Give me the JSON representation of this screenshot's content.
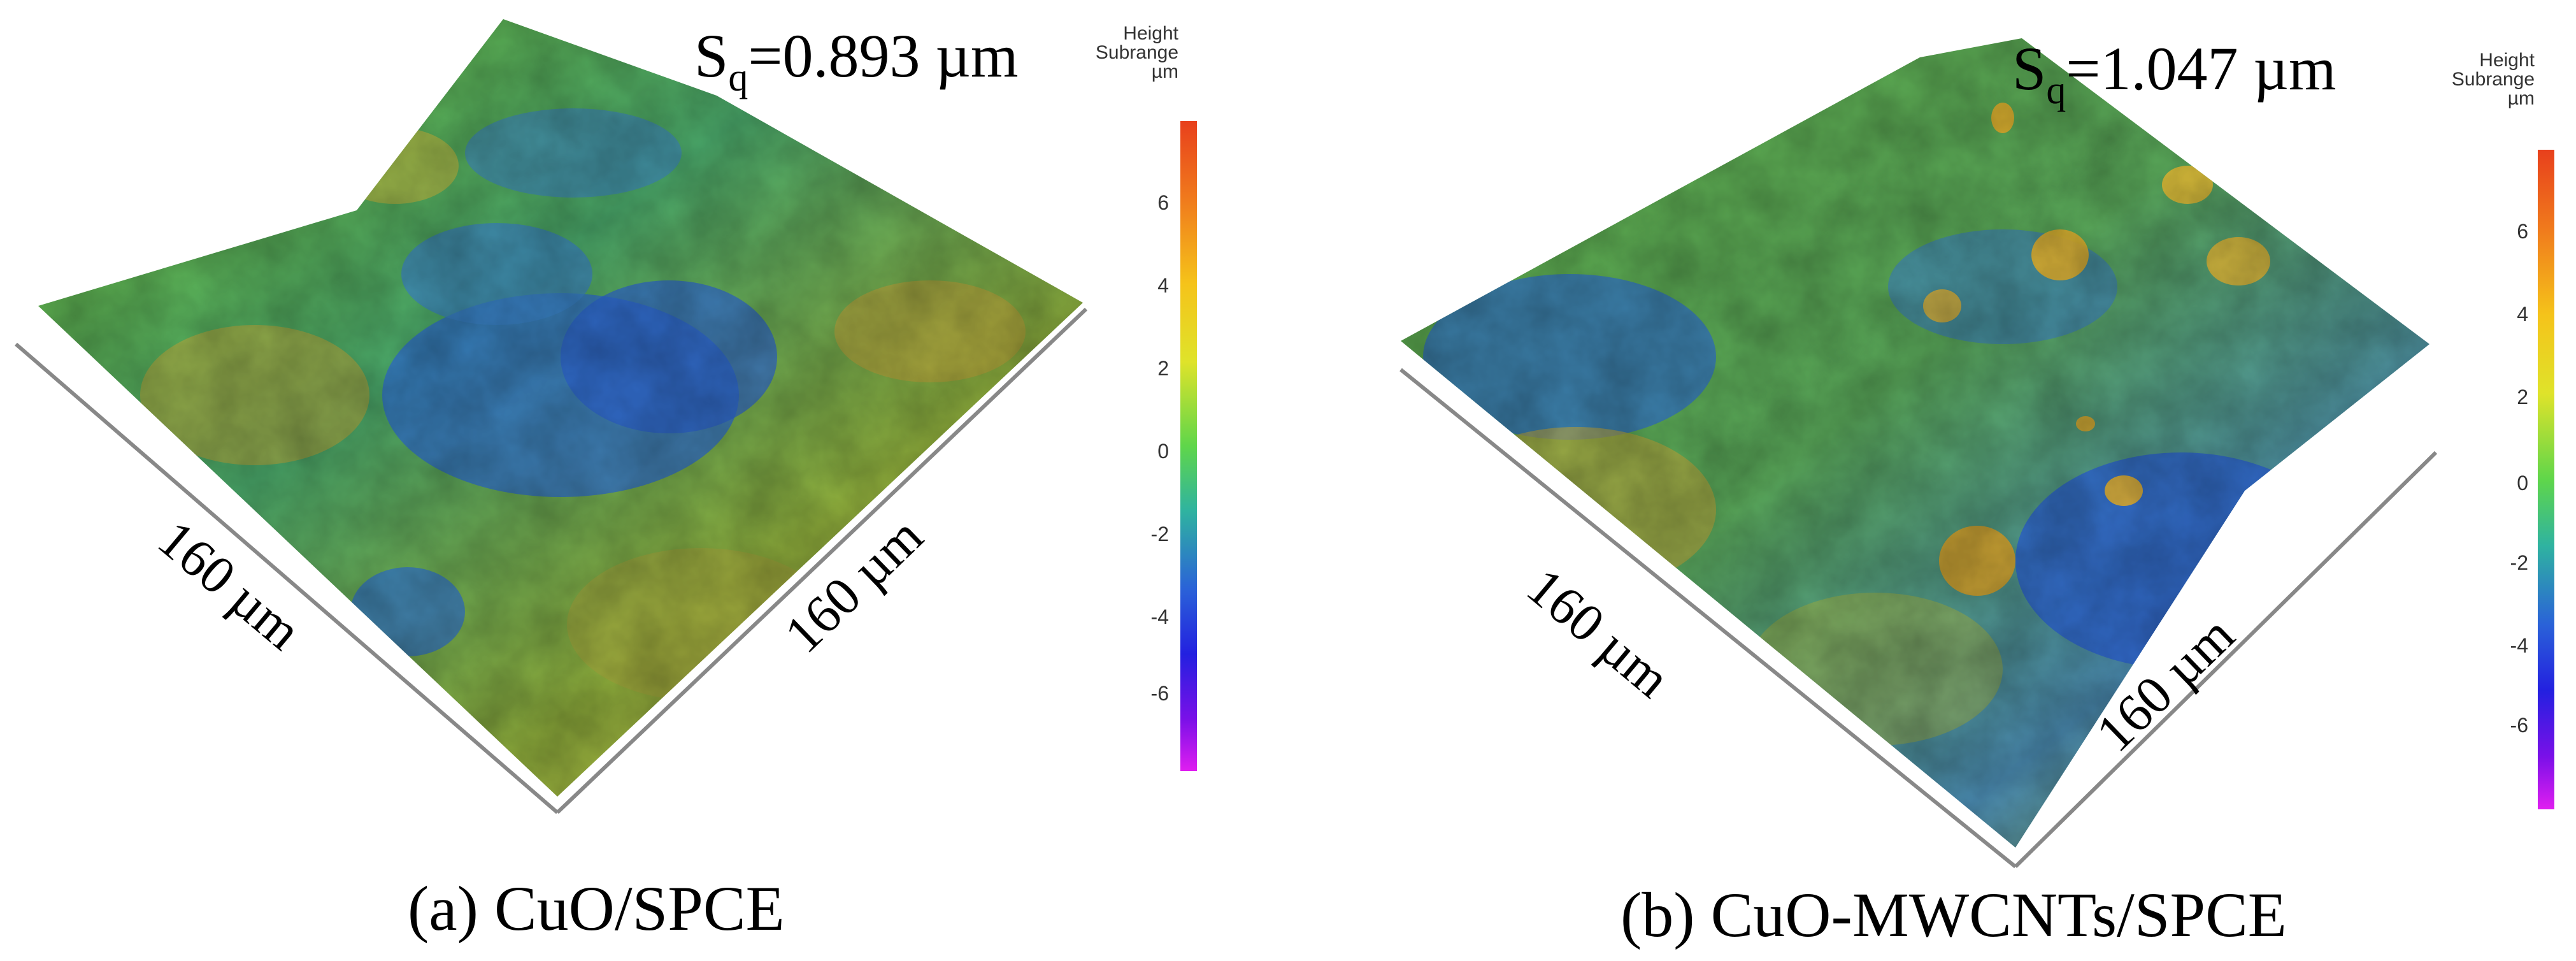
{
  "colors": {
    "high": "#e8401c",
    "mid_high": "#f5c31a",
    "zero": "#5fd64a",
    "mid_low": "#2a62d8",
    "low": "#e01ef0"
  },
  "legend": {
    "title_line1": "Height",
    "title_line2": "Subrange",
    "unit": "µm",
    "ticks": [
      "6",
      "4",
      "2",
      "0",
      "-2",
      "-4",
      "-6"
    ]
  },
  "panel_a": {
    "sq_symbol": "S",
    "sq_subscript": "q",
    "sq_value": "=0.893 µm",
    "axis_left_label": "160 µm",
    "axis_right_label": "160 µm",
    "caption": "(a) CuO/SPCE"
  },
  "panel_b": {
    "sq_symbol": "S",
    "sq_subscript": "q",
    "sq_value": "=1.047 µm",
    "axis_left_label": "160 µm",
    "axis_right_label": "160 µm",
    "caption": "(b) CuO-MWCNTs/SPCE"
  }
}
